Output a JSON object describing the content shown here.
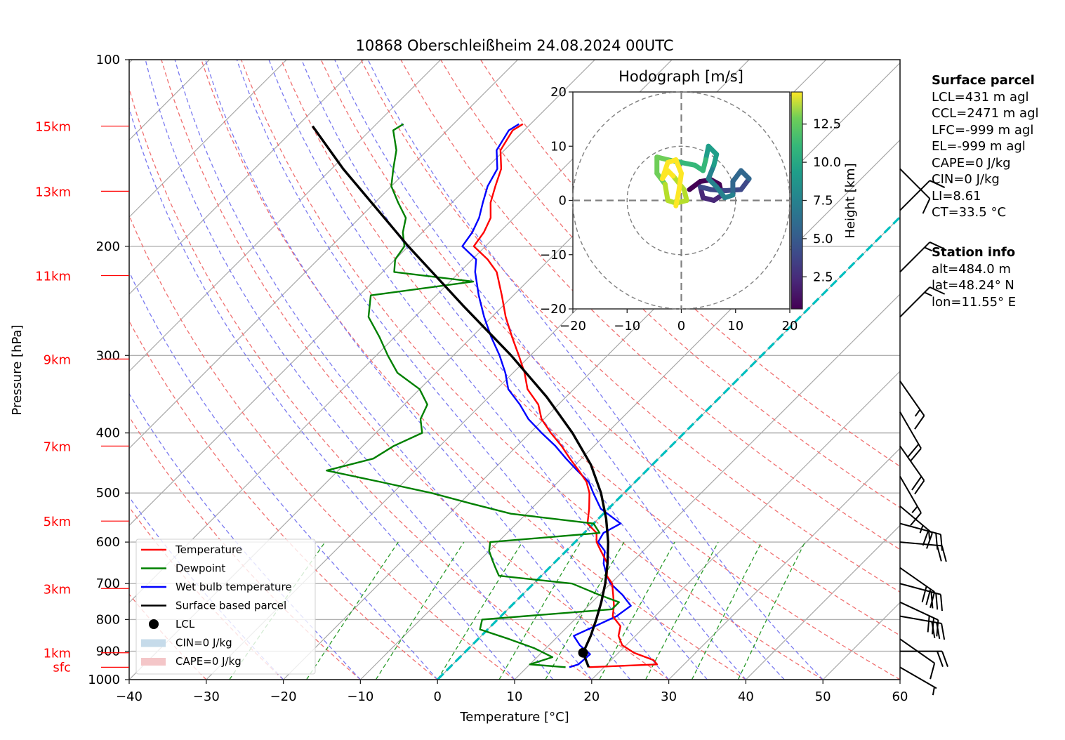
{
  "chart_data": {
    "type": "line",
    "subtype": "skew-T log-p diagram",
    "title": "10868 Oberschleißheim 24.08.2024 00UTC",
    "xlabel": "Temperature [°C]",
    "ylabel": "Pressure [hPa]",
    "xlim": [
      -40,
      60
    ],
    "ylim": [
      1000,
      100
    ],
    "yscale": "log",
    "x_ticks": [
      "−40",
      "−30",
      "−20",
      "−10",
      "0",
      "10",
      "20",
      "30",
      "40",
      "50",
      "60"
    ],
    "x_tick_values": [
      -40,
      -30,
      -20,
      -10,
      0,
      10,
      20,
      30,
      40,
      50,
      60
    ],
    "y_ticks": [
      "100",
      "200",
      "300",
      "400",
      "500",
      "600",
      "700",
      "800",
      "900",
      "1000"
    ],
    "y_tick_values": [
      100,
      200,
      300,
      400,
      500,
      600,
      700,
      800,
      900,
      1000
    ],
    "height_labels": [
      {
        "label": "15km",
        "p": 128
      },
      {
        "label": "13km",
        "p": 163
      },
      {
        "label": "11km",
        "p": 223
      },
      {
        "label": "9km",
        "p": 304
      },
      {
        "label": "7km",
        "p": 420
      },
      {
        "label": "5km",
        "p": 555
      },
      {
        "label": "3km",
        "p": 713
      },
      {
        "label": "1km",
        "p": 905
      },
      {
        "label": "sfc",
        "p": 955
      }
    ],
    "grid": true,
    "legend_position": "lower-left",
    "legend": [
      {
        "label": "Temperature",
        "kind": "line",
        "color": "#ff0000"
      },
      {
        "label": "Dewpoint",
        "kind": "line",
        "color": "#008000"
      },
      {
        "label": "Wet bulb temperature",
        "kind": "line",
        "color": "#0000ff"
      },
      {
        "label": "Surface based parcel",
        "kind": "line",
        "color": "#000000"
      },
      {
        "label": "LCL",
        "kind": "dot",
        "color": "#000000"
      },
      {
        "label": "CIN=0 J/kg",
        "kind": "patch",
        "color": "#c6dbea"
      },
      {
        "label": "CAPE=0 J/kg",
        "kind": "patch",
        "color": "#f4c6c8"
      }
    ],
    "series": [
      {
        "name": "Temperature",
        "color": "#ff0000",
        "p": [
          955,
          945,
          930,
          905,
          880,
          850,
          820,
          790,
          760,
          730,
          700,
          680,
          650,
          620,
          600,
          580,
          560,
          530,
          500,
          480,
          460,
          440,
          420,
          400,
          380,
          360,
          340,
          320,
          300,
          280,
          260,
          240,
          220,
          210,
          200,
          190,
          180,
          170,
          160,
          150,
          140,
          130,
          127
        ],
        "t": [
          18.0,
          26.5,
          25.5,
          22.0,
          19.5,
          17.8,
          16.8,
          14.5,
          13.3,
          11.8,
          10.2,
          8.5,
          7.0,
          4.5,
          2.8,
          1.6,
          -0.8,
          -2.5,
          -4.5,
          -6.3,
          -8.8,
          -11.5,
          -14.2,
          -17.3,
          -20.3,
          -22.6,
          -26.0,
          -28.5,
          -31.5,
          -34.8,
          -38.2,
          -41.5,
          -45.2,
          -48.0,
          -51.5,
          -52.0,
          -53.0,
          -55.0,
          -56.5,
          -58.0,
          -60.5,
          -61.5,
          -61.0
        ]
      },
      {
        "name": "Dewpoint",
        "color": "#008000",
        "p": [
          955,
          945,
          920,
          890,
          860,
          830,
          800,
          770,
          750,
          730,
          700,
          680,
          660,
          640,
          620,
          600,
          580,
          560,
          540,
          520,
          500,
          480,
          460,
          440,
          420,
          400,
          380,
          360,
          340,
          320,
          300,
          280,
          260,
          240,
          228,
          220,
          210,
          200,
          190,
          180,
          170,
          160,
          150,
          140,
          130,
          127
        ],
        "t": [
          15.0,
          10.0,
          12.0,
          8.5,
          4.0,
          -1.0,
          -2.0,
          13.5,
          13.5,
          10.0,
          5.0,
          -5.5,
          -7.0,
          -8.5,
          -10.0,
          -11.0,
          2.0,
          0.0,
          -12.0,
          -18.5,
          -25.0,
          -33.0,
          -41.5,
          -37.0,
          -36.0,
          -34.0,
          -36.0,
          -37.0,
          -40.0,
          -45.0,
          -48.5,
          -52.0,
          -56.0,
          -58.5,
          -47.0,
          -58.5,
          -60.0,
          -60.5,
          -62.5,
          -64.0,
          -67.0,
          -70.0,
          -72.0,
          -74.0,
          -77.0,
          -76.5
        ]
      },
      {
        "name": "Wet bulb temperature",
        "color": "#0000ff",
        "p": [
          955,
          945,
          910,
          880,
          850,
          820,
          790,
          760,
          730,
          700,
          680,
          650,
          620,
          600,
          580,
          560,
          530,
          500,
          480,
          460,
          440,
          420,
          400,
          380,
          360,
          340,
          320,
          300,
          280,
          260,
          240,
          220,
          210,
          200,
          190,
          180,
          170,
          160,
          150,
          140,
          130,
          127
        ],
        "t": [
          15.5,
          16.3,
          16.5,
          14.0,
          12.0,
          13.5,
          15.0,
          15.5,
          13.0,
          10.0,
          8.5,
          6.5,
          5.0,
          3.0,
          2.5,
          3.5,
          -1.0,
          -4.0,
          -6.0,
          -9.0,
          -12.0,
          -15.0,
          -18.5,
          -22.0,
          -25.0,
          -28.5,
          -31.0,
          -34.0,
          -37.5,
          -41.0,
          -44.5,
          -48.0,
          -49.5,
          -53.0,
          -53.5,
          -54.5,
          -56.0,
          -57.5,
          -58.5,
          -61.0,
          -62.0,
          -61.5
        ]
      },
      {
        "name": "Surface based parcel",
        "color": "#000000",
        "p": [
          955,
          905,
          850,
          800,
          750,
          700,
          650,
          600,
          550,
          500,
          450,
          400,
          350,
          300,
          250,
          200,
          150,
          128
        ],
        "t": [
          18.0,
          15.4,
          14.2,
          12.8,
          11.2,
          9.3,
          7.0,
          4.3,
          1.0,
          -3.0,
          -8.0,
          -14.5,
          -22.5,
          -32.5,
          -45.0,
          -60.0,
          -78.5,
          -88.0
        ]
      }
    ],
    "lcl_point": {
      "p": 905,
      "t": 15.4
    },
    "zero_isotherm_line": {
      "color": "#00bfbf",
      "from_t_at_1000": 0
    },
    "dry_adiabats_theta_c": [
      -30,
      -20,
      -10,
      0,
      10,
      20,
      30,
      40,
      50,
      60,
      70,
      80,
      90,
      100,
      110
    ],
    "moist_adiabats_theta_c": [
      -20,
      -10,
      0,
      10,
      15,
      20,
      25,
      30,
      35,
      40,
      45,
      50
    ],
    "mixing_ratio_lines": [
      -27,
      -17,
      -8,
      0,
      8,
      14,
      21,
      27,
      33,
      39
    ],
    "hodograph": {
      "title": "Hodograph [m/s]",
      "xlim": [
        -20,
        20
      ],
      "ylim": [
        -20,
        20
      ],
      "x_ticks": [
        "−20",
        "−10",
        "0",
        "10",
        "20"
      ],
      "y_ticks": [
        "20",
        "10",
        "0",
        "−10",
        "−20"
      ],
      "rings": [
        10,
        20
      ],
      "colorbar_label": "Height [km]",
      "colorbar_ticks": [
        "2.5",
        "5.0",
        "7.5",
        "10.0",
        "12.5"
      ],
      "colorbar_tick_values": [
        2.5,
        5.0,
        7.5,
        10.0,
        12.5
      ],
      "colorbar_range": [
        0.4,
        14.6
      ],
      "points": [
        {
          "h": 0.4,
          "u": 1.5,
          "v": 2.0
        },
        {
          "h": 0.8,
          "u": 3.5,
          "v": 3.5
        },
        {
          "h": 1.2,
          "u": 5.5,
          "v": 3.8
        },
        {
          "h": 1.6,
          "u": 7.0,
          "v": 3.0
        },
        {
          "h": 2.0,
          "u": 7.5,
          "v": 1.0
        },
        {
          "h": 2.4,
          "u": 6.0,
          "v": 0.0
        },
        {
          "h": 2.8,
          "u": 4.0,
          "v": 0.5
        },
        {
          "h": 3.2,
          "u": 3.5,
          "v": 2.5
        },
        {
          "h": 3.6,
          "u": 5.5,
          "v": 2.0
        },
        {
          "h": 4.0,
          "u": 8.0,
          "v": 1.8
        },
        {
          "h": 4.4,
          "u": 11.0,
          "v": 2.0
        },
        {
          "h": 4.8,
          "u": 12.5,
          "v": 4.0
        },
        {
          "h": 5.2,
          "u": 11.0,
          "v": 5.5
        },
        {
          "h": 5.6,
          "u": 9.5,
          "v": 3.5
        },
        {
          "h": 6.0,
          "u": 9.5,
          "v": 1.0
        },
        {
          "h": 6.4,
          "u": 8.0,
          "v": 0.5
        },
        {
          "h": 6.8,
          "u": 6.5,
          "v": 2.5
        },
        {
          "h": 7.2,
          "u": 5.0,
          "v": 4.0
        },
        {
          "h": 7.6,
          "u": 6.0,
          "v": 6.5
        },
        {
          "h": 8.0,
          "u": 6.5,
          "v": 8.5
        },
        {
          "h": 8.4,
          "u": 5.0,
          "v": 10.0
        },
        {
          "h": 8.8,
          "u": 4.5,
          "v": 7.5
        },
        {
          "h": 9.2,
          "u": 4.0,
          "v": 5.5
        },
        {
          "h": 9.6,
          "u": 2.5,
          "v": 6.5
        },
        {
          "h": 10.0,
          "u": 0.0,
          "v": 7.0
        },
        {
          "h": 10.4,
          "u": -2.5,
          "v": 7.5
        },
        {
          "h": 10.8,
          "u": -4.5,
          "v": 8.0
        },
        {
          "h": 11.2,
          "u": -4.5,
          "v": 5.0
        },
        {
          "h": 11.6,
          "u": -3.0,
          "v": 3.0
        },
        {
          "h": 12.0,
          "u": -2.5,
          "v": 0.0
        },
        {
          "h": 12.4,
          "u": -1.0,
          "v": -0.5
        },
        {
          "h": 12.8,
          "u": 1.0,
          "v": 0.0
        },
        {
          "h": 13.0,
          "u": 0.5,
          "v": 2.0
        },
        {
          "h": 13.2,
          "u": -1.5,
          "v": 4.5
        },
        {
          "h": 13.4,
          "u": -2.5,
          "v": 5.5
        },
        {
          "h": 13.6,
          "u": -3.5,
          "v": 4.0
        },
        {
          "h": 13.8,
          "u": -2.5,
          "v": 7.0
        },
        {
          "h": 14.0,
          "u": -1.0,
          "v": 7.5
        },
        {
          "h": 14.2,
          "u": 0.0,
          "v": 5.0
        },
        {
          "h": 14.4,
          "u": -0.5,
          "v": 1.5
        },
        {
          "h": 14.6,
          "u": -1.0,
          "v": -1.0
        }
      ]
    },
    "wind_barbs": [
      {
        "p": 150,
        "dir": 225,
        "speed_kt": 10
      },
      {
        "p": 175,
        "dir": 315,
        "speed_kt": 10
      },
      {
        "p": 220,
        "dir": 315,
        "speed_kt": 15
      },
      {
        "p": 260,
        "dir": 315,
        "speed_kt": 15
      },
      {
        "p": 330,
        "dir": 215,
        "speed_kt": 15
      },
      {
        "p": 370,
        "dir": 210,
        "speed_kt": 20
      },
      {
        "p": 420,
        "dir": 215,
        "speed_kt": 20
      },
      {
        "p": 470,
        "dir": 210,
        "speed_kt": 15
      },
      {
        "p": 525,
        "dir": 230,
        "speed_kt": 25
      },
      {
        "p": 560,
        "dir": 255,
        "speed_kt": 25
      },
      {
        "p": 600,
        "dir": 265,
        "speed_kt": 20
      },
      {
        "p": 660,
        "dir": 235,
        "speed_kt": 30
      },
      {
        "p": 700,
        "dir": 255,
        "speed_kt": 30
      },
      {
        "p": 750,
        "dir": 245,
        "speed_kt": 30
      },
      {
        "p": 790,
        "dir": 260,
        "speed_kt": 30
      },
      {
        "p": 860,
        "dir": 235,
        "speed_kt": 10
      },
      {
        "p": 900,
        "dir": 270,
        "speed_kt": 20
      },
      {
        "p": 955,
        "dir": 240,
        "speed_kt": 5
      }
    ]
  },
  "info": {
    "surface_parcel_title": "Surface parcel",
    "lcl": "LCL=431 m agl",
    "ccl": "CCL=2471 m agl",
    "lfc": "LFC=-999 m agl",
    "el": "EL=-999 m agl",
    "cape": "CAPE=0 J/kg",
    "cin": "CIN=0 J/kg",
    "li": "LI=8.61",
    "ct": "CT=33.5 °C",
    "station_title": "Station info",
    "alt": "alt=484.0 m",
    "lat": "lat=48.24° N",
    "lon": "lon=11.55° E"
  }
}
